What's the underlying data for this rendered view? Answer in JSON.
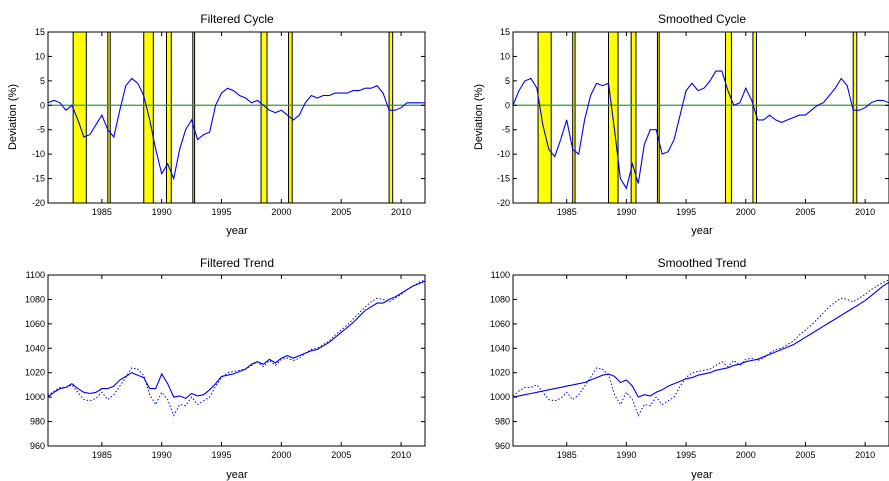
{
  "figure": {
    "colors": {
      "line": "#0000ee",
      "zero_line": "#2ca02c",
      "recession_fill": "#ffff00",
      "recession_edge": "#000000",
      "axes": "#000000"
    }
  },
  "chart_data": [
    {
      "type": "line",
      "title": "Filtered Cycle",
      "xlabel": "year",
      "ylabel": "Deviation (%)",
      "xlim": [
        1980.5,
        2012.0
      ],
      "ylim": [
        -20,
        15
      ],
      "xticks": [
        1985,
        1990,
        1995,
        2000,
        2005,
        2010
      ],
      "yticks": [
        -20,
        -15,
        -10,
        -5,
        0,
        5,
        10,
        15
      ],
      "zero_line": 0,
      "recession_bands": [
        [
          1982.6,
          1983.7
        ],
        [
          1985.5,
          1985.7
        ],
        [
          1988.5,
          1989.3
        ],
        [
          1990.4,
          1990.8
        ],
        [
          1992.6,
          1992.75
        ],
        [
          1998.3,
          1998.8
        ],
        [
          2000.6,
          2000.9
        ],
        [
          2009.0,
          2009.3
        ]
      ],
      "series": [
        {
          "style": "solid",
          "x": [
            1980.5,
            1981.0,
            1981.5,
            1982.0,
            1982.5,
            1983.0,
            1983.5,
            1984.0,
            1984.5,
            1985.0,
            1985.5,
            1986.0,
            1986.5,
            1987.0,
            1987.5,
            1988.0,
            1988.5,
            1989.0,
            1989.5,
            1990.0,
            1990.5,
            1991.0,
            1991.5,
            1992.0,
            1992.5,
            1993.0,
            1993.5,
            1994.0,
            1994.5,
            1995.0,
            1995.5,
            1996.0,
            1996.5,
            1997.0,
            1997.5,
            1998.0,
            1998.5,
            1999.0,
            1999.5,
            2000.0,
            2000.5,
            2001.0,
            2001.5,
            2002.0,
            2002.5,
            2003.0,
            2003.5,
            2004.0,
            2004.5,
            2005.0,
            2005.5,
            2006.0,
            2006.5,
            2007.0,
            2007.5,
            2008.0,
            2008.5,
            2009.0,
            2009.5,
            2010.0,
            2010.5,
            2011.0,
            2011.5,
            2012.0
          ],
          "y": [
            0.5,
            1.0,
            0.5,
            -1.0,
            0.0,
            -3.0,
            -6.5,
            -6.0,
            -4.0,
            -2.0,
            -5.0,
            -6.5,
            -1.0,
            4.0,
            5.5,
            4.5,
            2.0,
            -3.0,
            -9.0,
            -14.0,
            -12.0,
            -15.0,
            -9.0,
            -5.0,
            -3.0,
            -7.0,
            -6.0,
            -5.5,
            0.0,
            2.5,
            3.5,
            3.0,
            2.0,
            1.5,
            0.5,
            1.0,
            0.0,
            -1.0,
            -1.5,
            -1.0,
            -2.0,
            -3.0,
            -2.0,
            0.5,
            2.0,
            1.5,
            2.0,
            2.0,
            2.5,
            2.5,
            2.5,
            3.0,
            3.0,
            3.5,
            3.5,
            4.0,
            2.5,
            -1.0,
            -1.0,
            -0.5,
            0.5,
            0.5,
            0.5,
            0.5
          ]
        }
      ]
    },
    {
      "type": "line",
      "title": "Smoothed Cycle",
      "xlabel": "year",
      "ylabel": "Deviation (%)",
      "xlim": [
        1980.5,
        2012.0
      ],
      "ylim": [
        -20,
        15
      ],
      "xticks": [
        1985,
        1990,
        1995,
        2000,
        2005,
        2010
      ],
      "yticks": [
        -20,
        -15,
        -10,
        -5,
        0,
        5,
        10,
        15
      ],
      "zero_line": 0,
      "recession_bands": [
        [
          1982.6,
          1983.7
        ],
        [
          1985.5,
          1985.7
        ],
        [
          1988.5,
          1989.3
        ],
        [
          1990.4,
          1990.8
        ],
        [
          1992.6,
          1992.75
        ],
        [
          1998.3,
          1998.8
        ],
        [
          2000.6,
          2000.9
        ],
        [
          2009.0,
          2009.3
        ]
      ],
      "series": [
        {
          "style": "solid",
          "x": [
            1980.5,
            1981.0,
            1981.5,
            1982.0,
            1982.5,
            1983.0,
            1983.5,
            1984.0,
            1984.5,
            1985.0,
            1985.5,
            1986.0,
            1986.5,
            1987.0,
            1987.5,
            1988.0,
            1988.5,
            1989.0,
            1989.5,
            1990.0,
            1990.5,
            1991.0,
            1991.5,
            1992.0,
            1992.5,
            1993.0,
            1993.5,
            1994.0,
            1994.5,
            1995.0,
            1995.5,
            1996.0,
            1996.5,
            1997.0,
            1997.5,
            1998.0,
            1998.5,
            1999.0,
            1999.5,
            2000.0,
            2000.5,
            2001.0,
            2001.5,
            2002.0,
            2002.5,
            2003.0,
            2003.5,
            2004.0,
            2004.5,
            2005.0,
            2005.5,
            2006.0,
            2006.5,
            2007.0,
            2007.5,
            2008.0,
            2008.5,
            2009.0,
            2009.5,
            2010.0,
            2010.5,
            2011.0,
            2011.5,
            2012.0
          ],
          "y": [
            0.0,
            3.0,
            5.0,
            5.5,
            3.5,
            -4.0,
            -9.0,
            -10.5,
            -7.0,
            -3.0,
            -9.0,
            -10.0,
            -3.0,
            2.0,
            4.5,
            4.0,
            4.5,
            -5.0,
            -15.0,
            -17.0,
            -12.0,
            -16.0,
            -8.0,
            -5.0,
            -5.0,
            -10.0,
            -9.5,
            -7.0,
            -2.0,
            3.0,
            4.5,
            3.0,
            3.5,
            5.0,
            7.0,
            7.0,
            3.0,
            0.0,
            0.5,
            3.5,
            1.0,
            -3.0,
            -3.0,
            -2.0,
            -3.0,
            -3.5,
            -3.0,
            -2.5,
            -2.0,
            -2.0,
            -1.0,
            0.0,
            0.5,
            2.0,
            3.5,
            5.5,
            4.0,
            -1.0,
            -1.0,
            -0.5,
            0.5,
            1.0,
            1.0,
            0.5
          ]
        }
      ]
    },
    {
      "type": "line",
      "title": "Filtered Trend",
      "xlabel": "year",
      "ylabel": "",
      "xlim": [
        1980.5,
        2012.0
      ],
      "ylim": [
        960,
        1100
      ],
      "xticks": [
        1985,
        1990,
        1995,
        2000,
        2005,
        2010
      ],
      "yticks": [
        960,
        980,
        1000,
        1020,
        1040,
        1060,
        1080,
        1100
      ],
      "recession_bands": [],
      "series": [
        {
          "style": "solid",
          "x": [
            1980.5,
            1981.0,
            1981.5,
            1982.0,
            1982.5,
            1983.0,
            1983.5,
            1984.0,
            1984.5,
            1985.0,
            1985.5,
            1986.0,
            1986.5,
            1987.0,
            1987.5,
            1988.0,
            1988.5,
            1989.0,
            1989.5,
            1990.0,
            1990.5,
            1991.0,
            1991.5,
            1992.0,
            1992.5,
            1993.0,
            1993.5,
            1994.0,
            1994.5,
            1995.0,
            1995.5,
            1996.0,
            1996.5,
            1997.0,
            1997.5,
            1998.0,
            1998.5,
            1999.0,
            1999.5,
            2000.0,
            2000.5,
            2001.0,
            2001.5,
            2002.0,
            2002.5,
            2003.0,
            2003.5,
            2004.0,
            2004.5,
            2005.0,
            2005.5,
            2006.0,
            2006.5,
            2007.0,
            2007.5,
            2008.0,
            2008.5,
            2009.0,
            2009.5,
            2010.0,
            2010.5,
            2011.0,
            2011.5,
            2012.0
          ],
          "y": [
            1000,
            1004,
            1007,
            1008,
            1011,
            1007,
            1004,
            1003,
            1004,
            1007,
            1007,
            1009,
            1014,
            1017,
            1020,
            1018,
            1016,
            1007,
            1007,
            1019,
            1011,
            1000,
            1001,
            999,
            1003,
            1001,
            1002,
            1006,
            1011,
            1017,
            1018,
            1019,
            1021,
            1023,
            1027,
            1029,
            1027,
            1031,
            1028,
            1032,
            1034,
            1032,
            1034,
            1036,
            1038,
            1039,
            1042,
            1045,
            1049,
            1053,
            1057,
            1061,
            1066,
            1071,
            1074,
            1077,
            1077,
            1080,
            1082,
            1085,
            1088,
            1091,
            1093,
            1095
          ]
        },
        {
          "style": "dotted",
          "x": [
            1980.5,
            1981.0,
            1981.5,
            1982.0,
            1982.5,
            1983.0,
            1983.5,
            1984.0,
            1984.5,
            1985.0,
            1985.5,
            1986.0,
            1986.5,
            1987.0,
            1987.5,
            1988.0,
            1988.5,
            1989.0,
            1989.5,
            1990.0,
            1990.5,
            1991.0,
            1991.5,
            1992.0,
            1992.5,
            1993.0,
            1993.5,
            1994.0,
            1994.5,
            1995.0,
            1995.5,
            1996.0,
            1996.5,
            1997.0,
            1997.5,
            1998.0,
            1998.5,
            1999.0,
            1999.5,
            2000.0,
            2000.5,
            2001.0,
            2001.5,
            2002.0,
            2002.5,
            2003.0,
            2003.5,
            2004.0,
            2004.5,
            2005.0,
            2005.5,
            2006.0,
            2006.5,
            2007.0,
            2007.5,
            2008.0,
            2008.5,
            2009.0,
            2009.5,
            2010.0,
            2010.5,
            2011.0,
            2011.5,
            2012.0
          ],
          "y": [
            1001,
            1005,
            1008,
            1008,
            1010,
            1004,
            998,
            997,
            999,
            1004,
            998,
            1002,
            1009,
            1016,
            1024,
            1023,
            1018,
            1002,
            994,
            1004,
            998,
            985,
            994,
            993,
            1000,
            994,
            997,
            1000,
            1009,
            1016,
            1020,
            1021,
            1022,
            1023,
            1026,
            1029,
            1025,
            1030,
            1026,
            1031,
            1032,
            1030,
            1032,
            1036,
            1039,
            1040,
            1043,
            1046,
            1051,
            1055,
            1059,
            1064,
            1069,
            1074,
            1078,
            1081,
            1080,
            1078,
            1081,
            1084,
            1088,
            1091,
            1094,
            1096
          ]
        }
      ]
    },
    {
      "type": "line",
      "title": "Smoothed Trend",
      "xlabel": "year",
      "ylabel": "",
      "xlim": [
        1980.5,
        2012.0
      ],
      "ylim": [
        960,
        1100
      ],
      "xticks": [
        1985,
        1990,
        1995,
        2000,
        2005,
        2010
      ],
      "yticks": [
        960,
        980,
        1000,
        1020,
        1040,
        1060,
        1080,
        1100
      ],
      "recession_bands": [],
      "series": [
        {
          "style": "solid",
          "x": [
            1980.5,
            1981.0,
            1981.5,
            1982.0,
            1982.5,
            1983.0,
            1983.5,
            1984.0,
            1984.5,
            1985.0,
            1985.5,
            1986.0,
            1986.5,
            1987.0,
            1987.5,
            1988.0,
            1988.5,
            1989.0,
            1989.5,
            1990.0,
            1990.5,
            1991.0,
            1991.5,
            1992.0,
            1992.5,
            1993.0,
            1993.5,
            1994.0,
            1994.5,
            1995.0,
            1995.5,
            1996.0,
            1996.5,
            1997.0,
            1997.5,
            1998.0,
            1998.5,
            1999.0,
            1999.5,
            2000.0,
            2000.5,
            2001.0,
            2001.5,
            2002.0,
            2002.5,
            2003.0,
            2003.5,
            2004.0,
            2004.5,
            2005.0,
            2005.5,
            2006.0,
            2006.5,
            2007.0,
            2007.5,
            2008.0,
            2008.5,
            2009.0,
            2009.5,
            2010.0,
            2010.5,
            2011.0,
            2011.5,
            2012.0
          ],
          "y": [
            1000,
            1001,
            1002,
            1003,
            1004,
            1005,
            1006,
            1007,
            1008,
            1009,
            1010,
            1011,
            1012,
            1014,
            1016,
            1018,
            1019,
            1017,
            1012,
            1014,
            1009,
            1000,
            1002,
            1001,
            1004,
            1006,
            1009,
            1011,
            1013,
            1015,
            1016,
            1018,
            1019,
            1020,
            1022,
            1023,
            1024,
            1026,
            1027,
            1029,
            1030,
            1031,
            1033,
            1035,
            1037,
            1039,
            1041,
            1043,
            1046,
            1049,
            1052,
            1055,
            1058,
            1061,
            1064,
            1067,
            1070,
            1073,
            1076,
            1079,
            1083,
            1087,
            1091,
            1094
          ]
        },
        {
          "style": "dotted",
          "x": [
            1980.5,
            1981.0,
            1981.5,
            1982.0,
            1982.5,
            1983.0,
            1983.5,
            1984.0,
            1984.5,
            1985.0,
            1985.5,
            1986.0,
            1986.5,
            1987.0,
            1987.5,
            1988.0,
            1988.5,
            1989.0,
            1989.5,
            1990.0,
            1990.5,
            1991.0,
            1991.5,
            1992.0,
            1992.5,
            1993.0,
            1993.5,
            1994.0,
            1994.5,
            1995.0,
            1995.5,
            1996.0,
            1996.5,
            1997.0,
            1997.5,
            1998.0,
            1998.5,
            1999.0,
            1999.5,
            2000.0,
            2000.5,
            2001.0,
            2001.5,
            2002.0,
            2002.5,
            2003.0,
            2003.5,
            2004.0,
            2004.5,
            2005.0,
            2005.5,
            2006.0,
            2006.5,
            2007.0,
            2007.5,
            2008.0,
            2008.5,
            2009.0,
            2009.5,
            2010.0,
            2010.5,
            2011.0,
            2011.5,
            2012.0
          ],
          "y": [
            1001,
            1005,
            1008,
            1008,
            1010,
            1004,
            998,
            997,
            999,
            1004,
            998,
            1002,
            1009,
            1016,
            1024,
            1023,
            1018,
            1002,
            994,
            1004,
            998,
            985,
            994,
            993,
            1000,
            994,
            997,
            1000,
            1009,
            1016,
            1020,
            1021,
            1022,
            1023,
            1026,
            1029,
            1025,
            1030,
            1026,
            1031,
            1032,
            1030,
            1032,
            1036,
            1039,
            1040,
            1043,
            1046,
            1051,
            1055,
            1059,
            1064,
            1069,
            1074,
            1078,
            1081,
            1080,
            1078,
            1081,
            1084,
            1088,
            1091,
            1094,
            1096
          ]
        }
      ]
    }
  ]
}
